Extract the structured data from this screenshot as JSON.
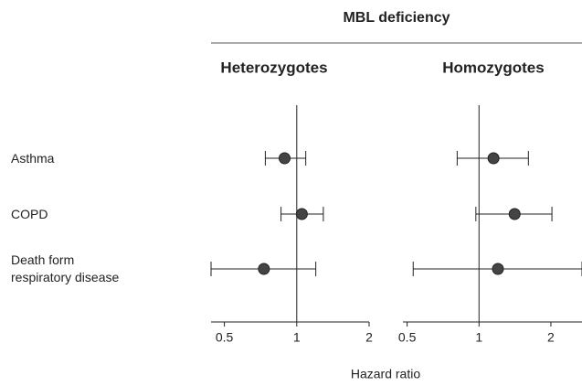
{
  "title": "MBL deficiency",
  "x_label": "Hazard ratio",
  "categories": [
    "Asthma",
    "COPD",
    "Death form\nrespiratory disease"
  ],
  "chart_data": [
    {
      "type": "forest",
      "title": "Heterozygotes",
      "xscale": "log",
      "values": [
        0.89,
        1.05,
        0.73
      ],
      "lower": [
        0.74,
        0.86,
        0.44
      ],
      "upper": [
        1.09,
        1.29,
        1.2
      ],
      "xlim": [
        0.44,
        2
      ],
      "xticks": [
        0.5,
        1,
        2
      ],
      "color": "#444444"
    },
    {
      "type": "forest",
      "title": "Homozygotes",
      "xscale": "log",
      "values": [
        1.15,
        1.41,
        1.2
      ],
      "lower": [
        0.81,
        0.97,
        0.53
      ],
      "upper": [
        1.61,
        2.02,
        2.7
      ],
      "xlim": [
        0.48,
        2.7
      ],
      "xticks": [
        0.5,
        1,
        2
      ],
      "color": "#444444"
    }
  ]
}
